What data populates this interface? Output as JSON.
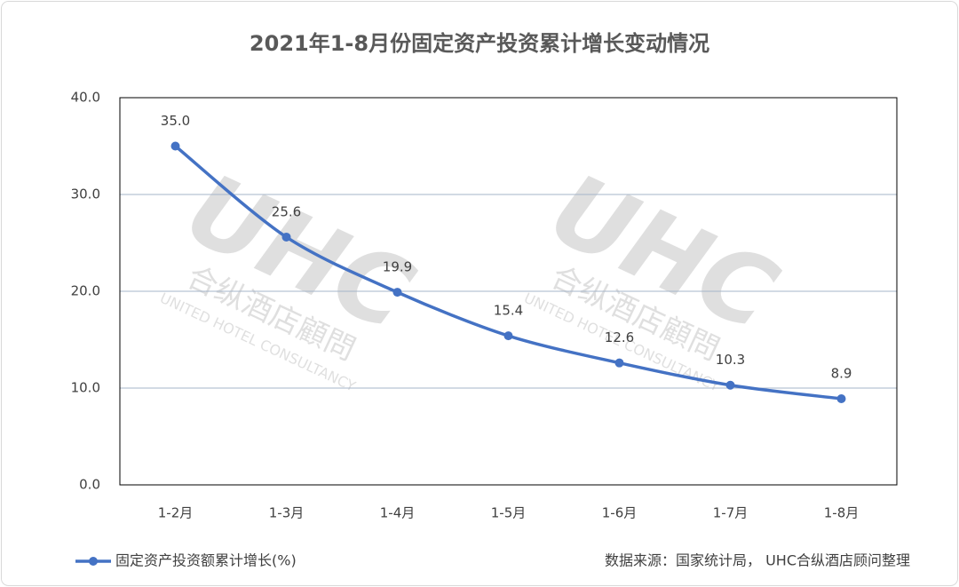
{
  "chart_data": {
    "type": "line",
    "title": "2021年1-8月份固定资产投资累计增长变动情况",
    "categories": [
      "1-2月",
      "1-3月",
      "1-4月",
      "1-5月",
      "1-6月",
      "1-7月",
      "1-8月"
    ],
    "series": [
      {
        "name": "固定资产投资额累计增长(%)",
        "color": "#4472c4",
        "values": [
          35.0,
          25.6,
          19.9,
          15.4,
          12.6,
          10.3,
          8.9
        ],
        "value_labels": [
          "35.0",
          "25.6",
          "19.9",
          "15.4",
          "12.6",
          "10.3",
          "8.9"
        ]
      }
    ],
    "ylim": [
      0,
      40
    ],
    "yticks": [
      {
        "value": 0,
        "label": "0.0"
      },
      {
        "value": 10,
        "label": "10.0"
      },
      {
        "value": 20,
        "label": "20.0"
      },
      {
        "value": 30,
        "label": "30.0"
      },
      {
        "value": 40,
        "label": "40.0"
      }
    ],
    "grid": true,
    "legend": "bottom-left",
    "source": "数据来源：国家统计局， UHC合纵酒店顾问整理",
    "watermark": [
      "UHC",
      "合纵酒店顧問",
      "UNITED HOTEL CONSULTANCY"
    ]
  }
}
